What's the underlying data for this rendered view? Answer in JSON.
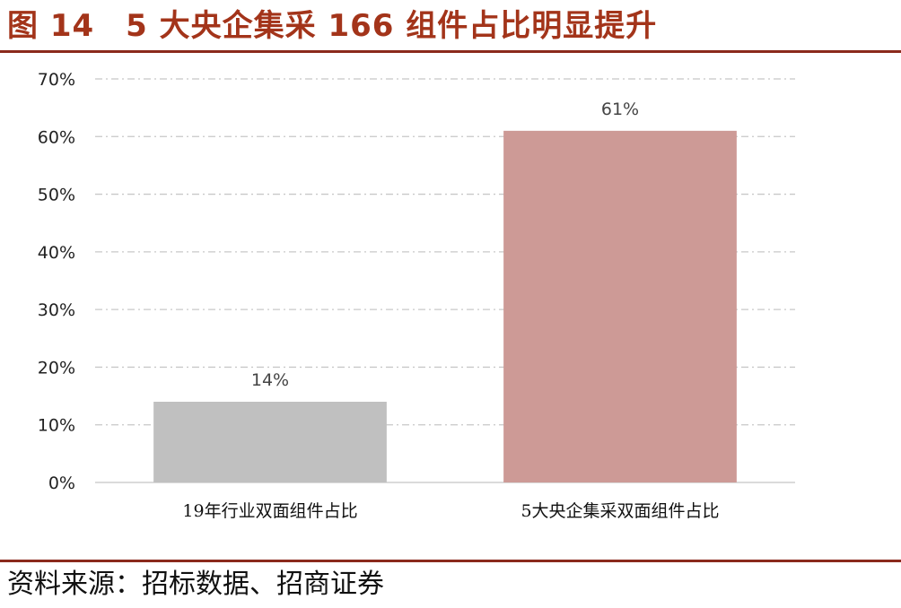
{
  "figure": {
    "title": "图 14　5 大央企集采 166 组件占比明显提升",
    "source": "资料来源：招标数据、招商证券",
    "accent_color": "#a3341a",
    "rule_color": "#8b2a1c"
  },
  "chart_data": {
    "type": "bar",
    "title": "",
    "xlabel": "",
    "ylabel": "",
    "categories": [
      "19年行业双面组件占比",
      "5大央企集采双面组件占比"
    ],
    "values": [
      14,
      61
    ],
    "value_labels": [
      "14%",
      "61%"
    ],
    "bar_colors": [
      "#c0c0c0",
      "#cd9a96"
    ],
    "ylim": [
      0,
      70
    ],
    "yticks": [
      0,
      10,
      20,
      30,
      40,
      50,
      60,
      70
    ],
    "ytick_labels": [
      "0%",
      "10%",
      "20%",
      "30%",
      "40%",
      "50%",
      "60%",
      "70%"
    ],
    "grid": true,
    "grid_style": "dash-dot",
    "legend": "none"
  }
}
